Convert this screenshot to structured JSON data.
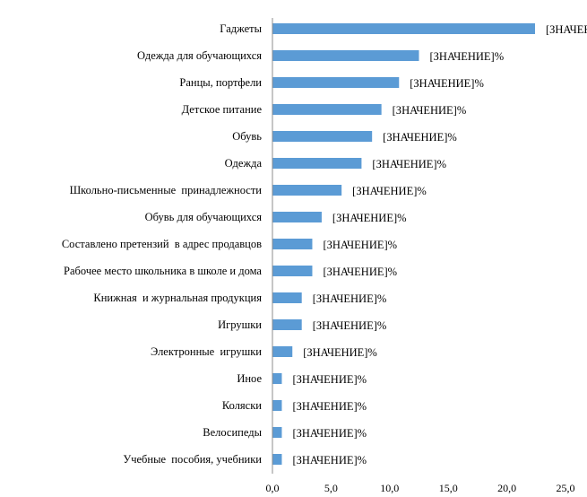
{
  "chart_data": {
    "type": "bar",
    "orientation": "horizontal",
    "title": "",
    "xlabel": "",
    "ylabel": "",
    "xlim": [
      0,
      25
    ],
    "x_ticks": [
      "0,0",
      "5,0",
      "10,0",
      "15,0",
      "20,0",
      "25,0"
    ],
    "grid": false,
    "legend": "none",
    "bar_color": "#5b9bd5",
    "data_label_text": "[ЗНАЧЕНИЕ]%",
    "categories": [
      "Гаджеты",
      "Одежда для обучающихся",
      "Ранцы, портфели",
      "Детское питание",
      "Обувь",
      "Одежда",
      "Школьно-письменные  принадлежности",
      "Обувь для обучающихся",
      "Составлено претензий  в адрес продавцов",
      "Рабочее место школьника в школе и дома",
      "Книжная  и журнальная продукция",
      "Игрушки",
      "Электронные  игрушки",
      "Иное",
      "Коляски",
      "Велосипеды",
      "Учебные  пособия, учебники"
    ],
    "values": [
      22.4,
      12.5,
      10.8,
      9.3,
      8.5,
      7.6,
      5.9,
      4.2,
      3.4,
      3.4,
      2.5,
      2.5,
      1.7,
      0.8,
      0.8,
      0.8,
      0.8
    ]
  }
}
